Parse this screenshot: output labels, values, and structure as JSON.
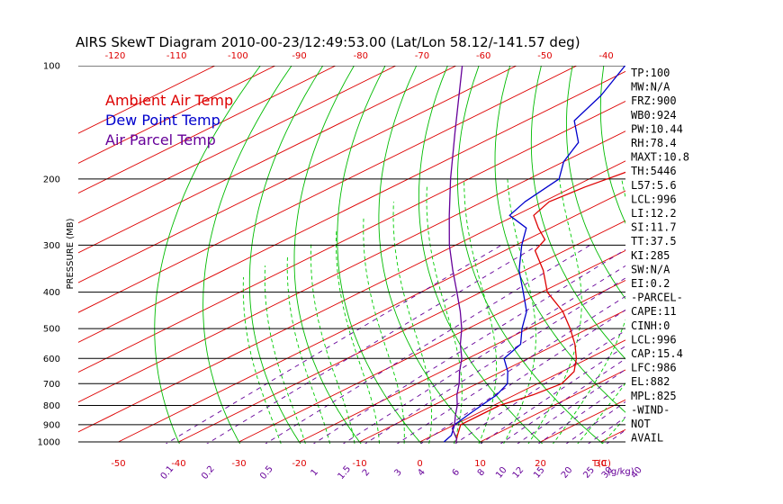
{
  "colors": {
    "ambient": "#dd0000",
    "dewpoint": "#0000cc",
    "parcel": "#660099",
    "isotherm": "#dd0000",
    "dry_adiabat": "#00bb00",
    "moist_adiabat": "#00cc00",
    "mixing_ratio": "#660099",
    "isobar": "#000000",
    "text": "#000000"
  },
  "chart_data": {
    "type": "line",
    "title": "AIRS SkewT Diagram 2010-00-23/12:49:53.00 (Lat/Lon 58.12/-141.57 deg)",
    "ylabel": "PRESSURE (MB)",
    "y_scale": "log",
    "ylim": [
      1000,
      100
    ],
    "xlim_bottom": [
      -55,
      42
    ],
    "bottom_ticks": [
      "-50",
      "-40",
      "-30",
      "-20",
      "-10",
      "0",
      "10",
      "20",
      "30"
    ],
    "bottom_ticks_values": [
      -50,
      -40,
      -30,
      -20,
      -10,
      0,
      10,
      20,
      30
    ],
    "bottom_unit_label": "T(C)",
    "top_ticks": [
      "-120",
      "-110",
      "-100",
      "-90",
      "-80",
      "-70",
      "-60",
      "-50",
      "-40"
    ],
    "pressure_ticks": [
      "100",
      "200",
      "300",
      "400",
      "500",
      "600",
      "700",
      "800",
      "900",
      "1000"
    ],
    "pressure_values": [
      100,
      200,
      300,
      400,
      500,
      600,
      700,
      800,
      900,
      1000
    ],
    "mixing_ratio_labels": [
      "0.1",
      "0.2",
      "0.5",
      "1",
      "1.5",
      "2",
      "3",
      "4",
      "6",
      "8",
      "10",
      "12",
      "15",
      "20",
      "25",
      "30",
      "40"
    ],
    "mixing_ratio_values": [
      0.1,
      0.2,
      0.5,
      1,
      1.5,
      2,
      3,
      4,
      6,
      8,
      10,
      12,
      15,
      20,
      25,
      30,
      40
    ],
    "mixing_ratio_unit": "(g/kg)",
    "legend": [
      "Ambient Air Temp",
      "Dew Point Temp",
      "Air Parcel Temp"
    ],
    "series": [
      {
        "name": "Ambient Air Temp",
        "points": [
          [
            1000,
            6
          ],
          [
            960,
            4
          ],
          [
            900,
            1
          ],
          [
            850,
            1
          ],
          [
            800,
            1
          ],
          [
            750,
            3
          ],
          [
            700,
            4
          ],
          [
            650,
            2
          ],
          [
            600,
            -2
          ],
          [
            550,
            -7
          ],
          [
            500,
            -13
          ],
          [
            450,
            -20
          ],
          [
            400,
            -29
          ],
          [
            350,
            -37
          ],
          [
            310,
            -45
          ],
          [
            290,
            -47
          ],
          [
            270,
            -52
          ],
          [
            250,
            -57
          ],
          [
            230,
            -59
          ],
          [
            210,
            -58
          ],
          [
            200,
            -57
          ],
          [
            180,
            -55
          ],
          [
            160,
            -51
          ],
          [
            140,
            -48
          ],
          [
            120,
            -44
          ],
          [
            100,
            -40
          ]
        ]
      },
      {
        "name": "Dew Point Temp",
        "points": [
          [
            1000,
            4
          ],
          [
            960,
            3
          ],
          [
            900,
            0
          ],
          [
            850,
            -1
          ],
          [
            800,
            -2
          ],
          [
            750,
            -3
          ],
          [
            700,
            -5
          ],
          [
            650,
            -9
          ],
          [
            600,
            -14
          ],
          [
            550,
            -16
          ],
          [
            500,
            -21
          ],
          [
            450,
            -26
          ],
          [
            400,
            -33
          ],
          [
            350,
            -41
          ],
          [
            300,
            -49
          ],
          [
            270,
            -54
          ],
          [
            250,
            -61
          ],
          [
            230,
            -63
          ],
          [
            200,
            -65
          ],
          [
            180,
            -70
          ],
          [
            160,
            -74
          ],
          [
            140,
            -82
          ],
          [
            120,
            -86
          ],
          [
            100,
            -92
          ]
        ]
      },
      {
        "name": "Air Parcel Temp",
        "points": [
          [
            1000,
            6
          ],
          [
            980,
            5
          ],
          [
            960,
            3.6
          ],
          [
            920,
            0.8
          ],
          [
            900,
            0
          ],
          [
            850,
            -3
          ],
          [
            800,
            -6
          ],
          [
            750,
            -9.6
          ],
          [
            700,
            -13
          ],
          [
            650,
            -17
          ],
          [
            600,
            -21
          ],
          [
            550,
            -26
          ],
          [
            500,
            -31
          ],
          [
            450,
            -37
          ],
          [
            400,
            -44
          ],
          [
            350,
            -52
          ],
          [
            300,
            -61
          ],
          [
            250,
            -71
          ],
          [
            200,
            -83
          ],
          [
            150,
            -98
          ],
          [
            100,
            -119
          ]
        ]
      }
    ],
    "indices": [
      "TP:100",
      "MW:N/A",
      "FRZ:900",
      "WB0:924",
      "PW:10.44",
      "RH:78.4",
      "MAXT:10.8",
      "TH:5446",
      "L57:5.6",
      "LCL:996",
      "LI:12.2",
      "SI:11.7",
      "TT:37.5",
      "KI:285",
      "SW:N/A",
      "EI:0.2",
      "-PARCEL-",
      "CAPE:11",
      "CINH:0",
      "LCL:996",
      "CAP:15.4",
      "LFC:986",
      "EL:882",
      "MPL:825",
      "-WIND-",
      "NOT",
      "AVAIL"
    ]
  }
}
